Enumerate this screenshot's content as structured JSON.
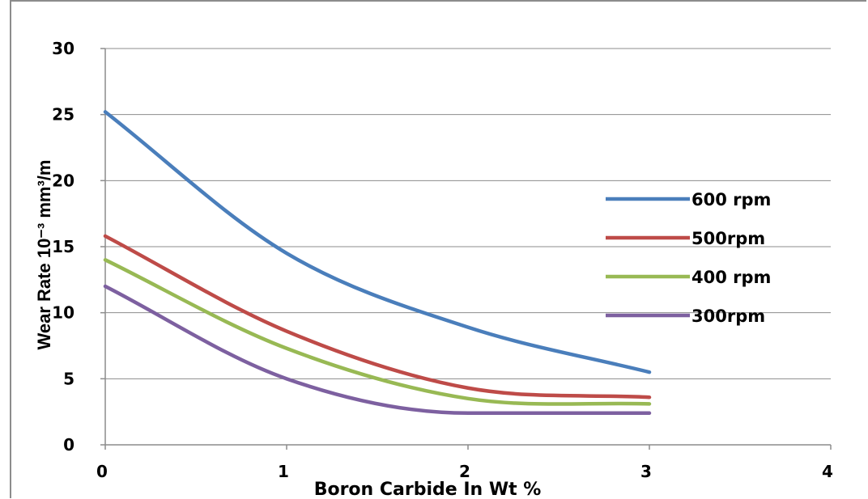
{
  "chart_data": {
    "type": "line",
    "xlabel": "Boron Carbide  In Wt %",
    "ylabel": "Wear Rate 10⁻³ mm³/m",
    "xlim": [
      0,
      4
    ],
    "ylim": [
      0,
      30
    ],
    "xticks": [
      0,
      1,
      2,
      3,
      4
    ],
    "yticks": [
      0,
      5,
      10,
      15,
      20,
      25,
      30
    ],
    "grid": "horizontal",
    "legend_position": "right",
    "x": [
      0,
      1,
      2,
      3
    ],
    "series": [
      {
        "name": "600 rpm",
        "color": "#4a7ebb",
        "values": [
          25.2,
          14.5,
          8.9,
          5.5
        ]
      },
      {
        "name": "500rpm",
        "color": "#be4b48",
        "values": [
          15.8,
          8.6,
          4.3,
          3.6
        ]
      },
      {
        "name": "400 rpm",
        "color": "#98b954",
        "values": [
          14.0,
          7.3,
          3.5,
          3.1
        ]
      },
      {
        "name": "300rpm",
        "color": "#7d60a0",
        "values": [
          12.0,
          5.0,
          2.4,
          2.4
        ]
      }
    ]
  }
}
